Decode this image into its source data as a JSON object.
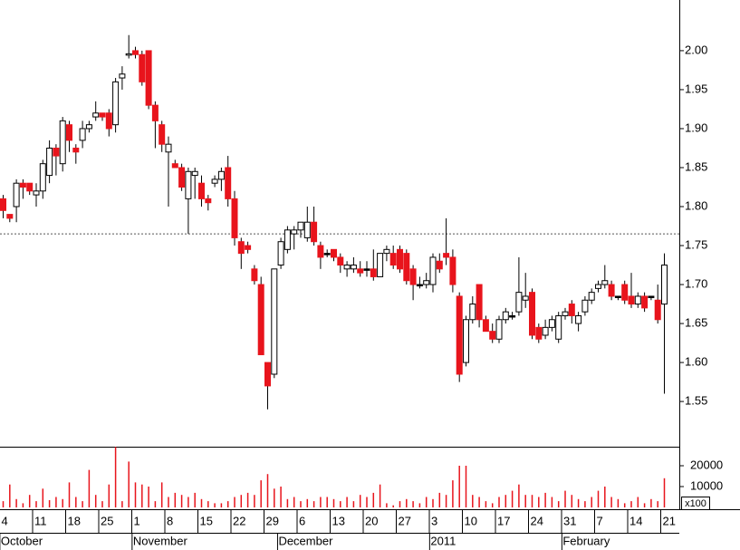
{
  "chart_data": {
    "type": "candlestick",
    "categories": [
      "4",
      null,
      null,
      null,
      null,
      "11",
      null,
      null,
      null,
      null,
      "18",
      null,
      null,
      null,
      null,
      "25",
      null,
      null,
      null,
      null,
      "1",
      null,
      null,
      null,
      null,
      "8",
      null,
      null,
      null,
      null,
      "15",
      null,
      null,
      null,
      null,
      "22",
      null,
      null,
      null,
      null,
      "29",
      null,
      null,
      null,
      null,
      "6",
      null,
      null,
      null,
      null,
      "13",
      null,
      null,
      null,
      null,
      "20",
      null,
      null,
      null,
      null,
      "27",
      null,
      null,
      null,
      null,
      "3",
      null,
      null,
      null,
      null,
      "10",
      null,
      null,
      null,
      null,
      "17",
      null,
      null,
      null,
      null,
      "24",
      null,
      null,
      null,
      null,
      "31",
      null,
      null,
      null,
      null,
      "7",
      null,
      null,
      null,
      null,
      "14",
      null,
      null,
      null,
      null,
      "21"
    ],
    "month_labels": [
      {
        "value": 0,
        "label": "October"
      },
      {
        "value": 20,
        "label": "November"
      },
      {
        "value": 42,
        "label": "December"
      },
      {
        "value": 65,
        "label": "2011"
      },
      {
        "value": 85,
        "label": "February"
      }
    ],
    "open": [
      1.81,
      1.79,
      1.8,
      1.83,
      1.83,
      1.815,
      1.82,
      1.84,
      1.875,
      1.855,
      1.905,
      1.875,
      1.885,
      1.9,
      1.915,
      1.92,
      1.92,
      1.905,
      1.965,
      1.995,
      2.0,
      1.995,
      2.0,
      1.93,
      1.905,
      1.87,
      1.855,
      1.85,
      1.81,
      1.84,
      1.83,
      1.81,
      1.83,
      1.835,
      1.85,
      1.81,
      1.755,
      1.75,
      1.72,
      1.7,
      1.6,
      1.585,
      1.725,
      1.745,
      1.765,
      1.77,
      1.76,
      1.78,
      1.75,
      1.74,
      1.745,
      1.735,
      1.72,
      1.72,
      1.72,
      1.72,
      1.72,
      1.71,
      1.74,
      1.74,
      1.745,
      1.74,
      1.72,
      1.7,
      1.7,
      1.7,
      1.73,
      1.74,
      1.735,
      1.685,
      1.6,
      1.655,
      1.7,
      1.655,
      1.64,
      1.63,
      1.655,
      1.66,
      1.665,
      1.68,
      1.69,
      1.645,
      1.635,
      1.645,
      1.63,
      1.66,
      1.675,
      1.65,
      1.665,
      1.68,
      1.695,
      1.7,
      1.7,
      1.685,
      1.7,
      1.685,
      1.675,
      1.685,
      1.685,
      1.68,
      1.675
    ],
    "high": [
      1.815,
      1.79,
      1.835,
      1.835,
      1.83,
      1.83,
      1.86,
      1.885,
      1.88,
      1.915,
      1.91,
      1.88,
      1.91,
      1.91,
      1.935,
      1.92,
      1.925,
      1.965,
      1.98,
      2.02,
      2.005,
      2.0,
      2.0,
      1.935,
      1.91,
      1.89,
      1.86,
      1.855,
      1.85,
      1.85,
      1.84,
      1.815,
      1.84,
      1.85,
      1.865,
      1.82,
      1.76,
      1.755,
      1.725,
      1.71,
      1.6,
      1.72,
      1.76,
      1.775,
      1.775,
      1.78,
      1.8,
      1.8,
      1.755,
      1.745,
      1.745,
      1.74,
      1.73,
      1.735,
      1.73,
      1.73,
      1.745,
      1.74,
      1.75,
      1.75,
      1.75,
      1.745,
      1.725,
      1.71,
      1.715,
      1.74,
      1.74,
      1.785,
      1.745,
      1.69,
      1.66,
      1.685,
      1.7,
      1.66,
      1.65,
      1.66,
      1.67,
      1.665,
      1.735,
      1.715,
      1.695,
      1.65,
      1.655,
      1.66,
      1.665,
      1.67,
      1.68,
      1.665,
      1.685,
      1.695,
      1.705,
      1.725,
      1.705,
      1.685,
      1.705,
      1.715,
      1.69,
      1.69,
      1.685,
      1.7,
      1.74
    ],
    "low": [
      1.785,
      1.78,
      1.78,
      1.81,
      1.815,
      1.8,
      1.81,
      1.83,
      1.84,
      1.845,
      1.87,
      1.855,
      1.875,
      1.895,
      1.91,
      1.91,
      1.89,
      1.895,
      1.95,
      1.99,
      1.99,
      1.955,
      1.925,
      1.875,
      1.87,
      1.8,
      1.85,
      1.82,
      1.765,
      1.81,
      1.8,
      1.795,
      1.825,
      1.82,
      1.8,
      1.75,
      1.72,
      1.74,
      1.7,
      1.61,
      1.54,
      1.58,
      1.72,
      1.74,
      1.745,
      1.76,
      1.755,
      1.75,
      1.72,
      1.735,
      1.73,
      1.715,
      1.71,
      1.715,
      1.71,
      1.71,
      1.705,
      1.71,
      1.73,
      1.72,
      1.715,
      1.7,
      1.68,
      1.695,
      1.695,
      1.69,
      1.715,
      1.725,
      1.69,
      1.575,
      1.595,
      1.65,
      1.645,
      1.64,
      1.625,
      1.625,
      1.65,
      1.655,
      1.66,
      1.67,
      1.63,
      1.625,
      1.63,
      1.64,
      1.625,
      1.655,
      1.65,
      1.64,
      1.66,
      1.675,
      1.69,
      1.695,
      1.68,
      1.68,
      1.675,
      1.67,
      1.67,
      1.665,
      1.68,
      1.65,
      1.56
    ],
    "close": [
      1.795,
      1.785,
      1.83,
      1.825,
      1.82,
      1.82,
      1.855,
      1.875,
      1.865,
      1.91,
      1.885,
      1.87,
      1.9,
      1.905,
      1.92,
      1.915,
      1.9,
      1.96,
      1.97,
      1.996,
      1.995,
      1.96,
      1.93,
      1.91,
      1.88,
      1.88,
      1.85,
      1.825,
      1.845,
      1.845,
      1.81,
      1.805,
      1.835,
      1.845,
      1.81,
      1.76,
      1.74,
      1.745,
      1.705,
      1.61,
      1.57,
      1.72,
      1.755,
      1.77,
      1.77,
      1.78,
      1.78,
      1.755,
      1.735,
      1.74,
      1.735,
      1.725,
      1.725,
      1.725,
      1.715,
      1.72,
      1.71,
      1.74,
      1.745,
      1.725,
      1.72,
      1.705,
      1.7,
      1.7,
      1.705,
      1.735,
      1.72,
      1.735,
      1.7,
      1.585,
      1.655,
      1.675,
      1.655,
      1.64,
      1.63,
      1.655,
      1.665,
      1.66,
      1.69,
      1.685,
      1.635,
      1.63,
      1.645,
      1.655,
      1.66,
      1.665,
      1.66,
      1.66,
      1.68,
      1.69,
      1.7,
      1.705,
      1.685,
      1.685,
      1.68,
      1.675,
      1.685,
      1.67,
      1.685,
      1.655,
      1.725
    ],
    "up_color": "#ffffff",
    "down_color": "#e8141c",
    "doji_color": "#000000",
    "ylim": [
      1.492,
      2.065
    ],
    "yticks": [
      1.55,
      {
        "value": 1.6,
        "label": "1.60"
      },
      1.65,
      {
        "value": 1.7,
        "label": "1.70"
      },
      1.75,
      {
        "value": 1.8,
        "label": "1.80"
      },
      1.85,
      {
        "value": 1.9,
        "label": "1.90"
      },
      1.95,
      {
        "value": 2.0,
        "label": "2.00"
      }
    ],
    "reference_line": 1.765,
    "volume": {
      "color": "#e8141c",
      "unit_label": "x100",
      "ylim": [
        0,
        29130
      ],
      "yticks": [
        10000,
        20000
      ],
      "values": [
        3000,
        11000,
        4000,
        2000,
        6000,
        3000,
        9000,
        3500,
        5000,
        4000,
        12000,
        5000,
        3000,
        18000,
        6000,
        3000,
        11000,
        29000,
        3000,
        22000,
        12000,
        11000,
        10000,
        3000,
        12000,
        5000,
        7000,
        6000,
        5000,
        7000,
        4000,
        3000,
        2000,
        2000,
        3000,
        5000,
        6000,
        7000,
        6000,
        13000,
        16000,
        9000,
        10000,
        4000,
        5000,
        3000,
        4000,
        3000,
        5000,
        5000,
        4000,
        3000,
        5000,
        3000,
        6000,
        5000,
        7000,
        11000,
        2000,
        1000,
        3000,
        4000,
        3000,
        2000,
        5000,
        4000,
        7000,
        6000,
        13000,
        20000,
        20000,
        6000,
        5000,
        3000,
        2000,
        5000,
        6000,
        8000,
        11000,
        6000,
        6000,
        5000,
        7000,
        5000,
        3000,
        8000,
        6000,
        4000,
        3000,
        5000,
        8000,
        10000,
        5000,
        4000,
        2000,
        3000,
        5000,
        2000,
        4000,
        3000,
        14000
      ]
    }
  }
}
